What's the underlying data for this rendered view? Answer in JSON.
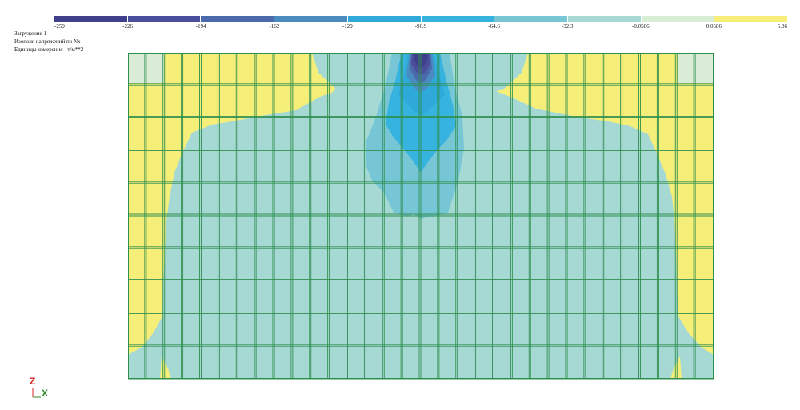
{
  "info": {
    "line1": "Загружение 1",
    "line2": "Изополя напряжений по Nx",
    "line3": "Единицы измерения - т/м**2"
  },
  "legend": {
    "ticks": [
      "-259",
      "-226",
      "-194",
      "-162",
      "-129",
      "-96.9",
      "-64.6",
      "-32.3",
      "-0.0586",
      "0.0586",
      "5.86"
    ],
    "colors": [
      "#3f3f8c",
      "#4a4e9c",
      "#4b6aab",
      "#4a8cc0",
      "#2fa9d9",
      "#36b3de",
      "#77c6d6",
      "#a6d9d4",
      "#d8ecd6",
      "#f5ee78"
    ]
  },
  "axes": {
    "z_label": "Z",
    "x_label": "X"
  },
  "chart_data": {
    "type": "heatmap",
    "legend_title": "",
    "levels": [
      -259,
      -226,
      -194,
      -162,
      -129,
      -96.9,
      -64.6,
      -32.3,
      -0.0586,
      0.0586,
      5.86
    ],
    "mesh": {
      "columns": 32,
      "rows": 10
    },
    "point_load": "top-center"
  }
}
